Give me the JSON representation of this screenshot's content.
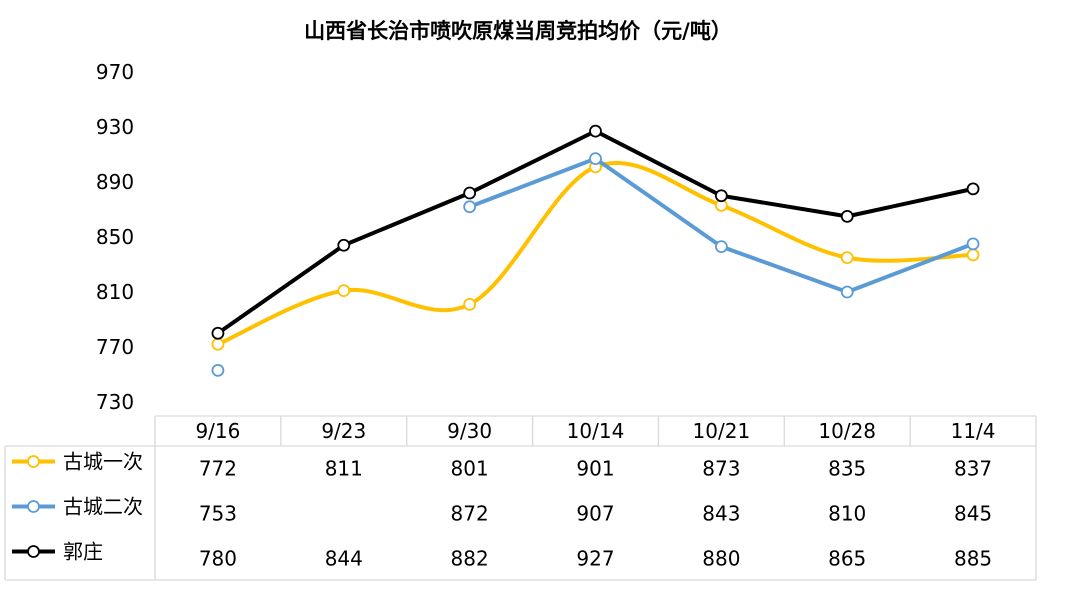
{
  "chart_data": {
    "type": "line",
    "title": "山西省长治市喷吹原煤当周竞拍均价（元/吨）",
    "categories": [
      "9/16",
      "9/23",
      "9/30",
      "10/14",
      "10/21",
      "10/28",
      "11/4"
    ],
    "yticks": [
      "970",
      "930",
      "890",
      "850",
      "810",
      "770",
      "730"
    ],
    "ylim": [
      730,
      970
    ],
    "series": [
      {
        "name": "古城一次",
        "color": "#FFC000",
        "smooth": true,
        "values": [
          772,
          811,
          801,
          901,
          873,
          835,
          837
        ],
        "labels": [
          "772",
          "811",
          "801",
          "901",
          "873",
          "835",
          "837"
        ]
      },
      {
        "name": "古城二次",
        "color": "#5B9BD5",
        "smooth": false,
        "values": [
          753,
          null,
          872,
          907,
          843,
          810,
          845
        ],
        "labels": [
          "753",
          "",
          "872",
          "907",
          "843",
          "810",
          "845"
        ]
      },
      {
        "name": "郭庄",
        "color": "#000000",
        "smooth": false,
        "values": [
          780,
          844,
          882,
          927,
          880,
          865,
          885
        ],
        "labels": [
          "780",
          "844",
          "882",
          "927",
          "880",
          "865",
          "885"
        ]
      }
    ]
  }
}
